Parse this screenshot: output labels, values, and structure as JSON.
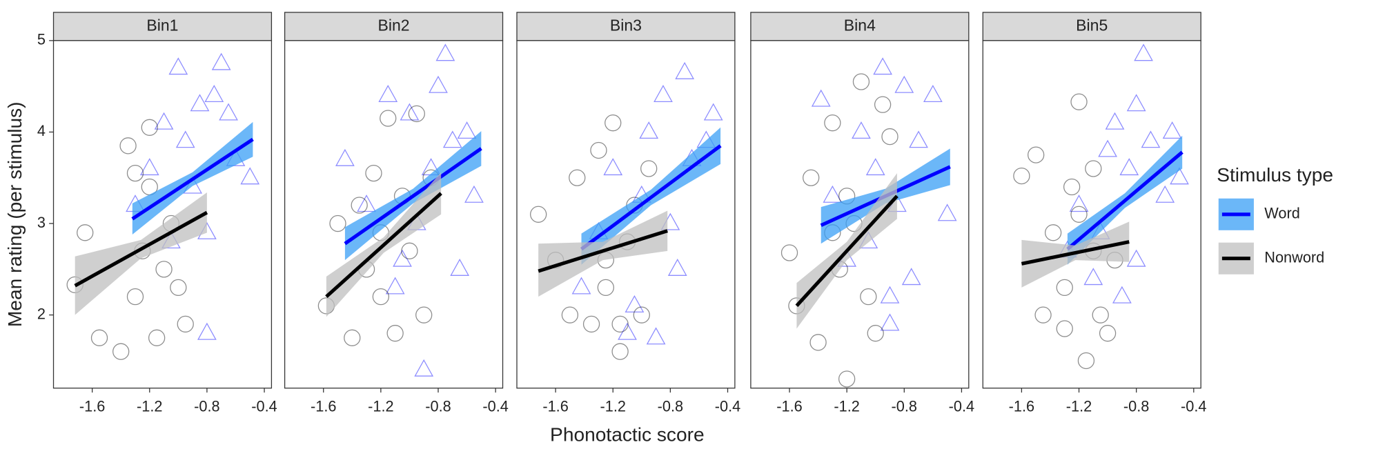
{
  "xlabel": "Phonotactic score",
  "ylabel": "Mean rating (per stimulus)",
  "legend_title": "Stimulus type",
  "chart_data": [
    {
      "type": "scatter",
      "title": "Bin1",
      "xlim": [
        -1.87,
        -0.35
      ],
      "ylim": [
        1.2,
        5.0
      ],
      "xticks": [
        -1.6,
        -1.2,
        -0.8,
        -0.4
      ],
      "yticks": [
        2,
        3,
        4,
        5
      ],
      "series": [
        {
          "name": "Word",
          "color": "#0000ff",
          "band_color": "#3a9ff5",
          "shape": "triangle",
          "x": [
            -1.3,
            -1.2,
            -1.1,
            -1.05,
            -1.0,
            -0.95,
            -0.9,
            -0.85,
            -0.8,
            -0.75,
            -0.7,
            -0.6,
            -0.5,
            -0.8,
            -0.65
          ],
          "values": [
            3.2,
            3.6,
            4.1,
            2.8,
            4.7,
            3.9,
            3.4,
            4.3,
            1.8,
            4.4,
            4.75,
            3.7,
            3.5,
            2.9,
            4.2
          ],
          "fit": {
            "x": [
              -1.32,
              -0.9,
              -0.48
            ],
            "y": [
              3.05,
              3.485,
              3.92
            ],
            "lower": [
              2.88,
              3.41,
              3.73
            ],
            "upper": [
              3.22,
              3.56,
              4.11
            ]
          }
        },
        {
          "name": "Nonword",
          "color": "#000000",
          "band_color": "#bfbfbf",
          "shape": "circle",
          "x": [
            -1.72,
            -1.65,
            -1.55,
            -1.4,
            -1.35,
            -1.3,
            -1.25,
            -1.2,
            -1.15,
            -1.1,
            -1.05,
            -1.0,
            -0.95,
            -1.2,
            -1.3
          ],
          "values": [
            2.33,
            2.9,
            1.75,
            1.6,
            3.85,
            2.2,
            2.7,
            3.4,
            1.75,
            2.5,
            3.0,
            2.3,
            1.9,
            4.05,
            3.55
          ],
          "fit": {
            "x": [
              -1.72,
              -1.26,
              -0.8
            ],
            "y": [
              2.32,
              2.72,
              3.12
            ],
            "lower": [
              2.0,
              2.62,
              2.9
            ],
            "upper": [
              2.64,
              2.82,
              3.34
            ]
          }
        }
      ]
    },
    {
      "type": "scatter",
      "title": "Bin2",
      "xlim": [
        -1.87,
        -0.35
      ],
      "ylim": [
        1.2,
        5.0
      ],
      "xticks": [
        -1.6,
        -1.2,
        -0.8,
        -0.4
      ],
      "series": [
        {
          "name": "Word",
          "color": "#0000ff",
          "band_color": "#3a9ff5",
          "shape": "triangle",
          "x": [
            -1.45,
            -1.3,
            -1.15,
            -1.05,
            -1.0,
            -0.9,
            -0.85,
            -0.8,
            -0.75,
            -0.7,
            -0.65,
            -0.6,
            -0.55,
            -0.95,
            -1.1
          ],
          "values": [
            3.7,
            3.2,
            4.4,
            2.6,
            4.2,
            1.4,
            3.6,
            4.5,
            4.85,
            3.9,
            2.5,
            4.0,
            3.3,
            3.0,
            2.3
          ],
          "fit": {
            "x": [
              -1.45,
              -0.975,
              -0.5
            ],
            "y": [
              2.78,
              3.3,
              3.82
            ],
            "lower": [
              2.6,
              3.22,
              3.63
            ],
            "upper": [
              2.96,
              3.38,
              4.01
            ]
          }
        },
        {
          "name": "Nonword",
          "color": "#000000",
          "band_color": "#bfbfbf",
          "shape": "circle",
          "x": [
            -1.58,
            -1.5,
            -1.4,
            -1.3,
            -1.25,
            -1.2,
            -1.15,
            -1.1,
            -1.05,
            -1.0,
            -0.95,
            -0.9,
            -1.2,
            -1.35,
            -0.85
          ],
          "values": [
            2.1,
            3.0,
            1.75,
            2.5,
            3.55,
            2.2,
            4.15,
            1.8,
            3.3,
            2.7,
            4.2,
            2.0,
            2.9,
            3.2,
            3.5
          ],
          "fit": {
            "x": [
              -1.58,
              -1.18,
              -0.78
            ],
            "y": [
              2.2,
              2.765,
              3.33
            ],
            "lower": [
              1.98,
              2.68,
              3.1
            ],
            "upper": [
              2.42,
              2.85,
              3.56
            ]
          }
        }
      ]
    },
    {
      "type": "scatter",
      "title": "Bin3",
      "xlim": [
        -1.87,
        -0.35
      ],
      "ylim": [
        1.2,
        5.0
      ],
      "xticks": [
        -1.6,
        -1.2,
        -0.8,
        -0.4
      ],
      "series": [
        {
          "name": "Word",
          "color": "#0000ff",
          "band_color": "#3a9ff5",
          "shape": "triangle",
          "x": [
            -1.42,
            -1.3,
            -1.2,
            -1.1,
            -1.0,
            -0.95,
            -0.9,
            -0.85,
            -0.8,
            -0.7,
            -0.65,
            -0.55,
            -0.5,
            -1.05,
            -0.75
          ],
          "values": [
            2.3,
            2.9,
            3.6,
            1.8,
            3.3,
            4.0,
            1.75,
            4.4,
            3.0,
            4.65,
            3.7,
            3.9,
            4.2,
            2.1,
            2.5
          ],
          "fit": {
            "x": [
              -1.42,
              -0.935,
              -0.45
            ],
            "y": [
              2.72,
              3.285,
              3.85
            ],
            "lower": [
              2.55,
              3.2,
              3.65
            ],
            "upper": [
              2.89,
              3.37,
              4.05
            ]
          }
        },
        {
          "name": "Nonword",
          "color": "#000000",
          "band_color": "#bfbfbf",
          "shape": "circle",
          "x": [
            -1.72,
            -1.6,
            -1.5,
            -1.45,
            -1.35,
            -1.3,
            -1.25,
            -1.2,
            -1.15,
            -1.1,
            -1.05,
            -1.0,
            -1.25,
            -1.15,
            -0.95
          ],
          "values": [
            3.1,
            2.6,
            2.0,
            3.5,
            1.9,
            3.8,
            2.3,
            4.1,
            1.6,
            2.8,
            3.2,
            2.0,
            2.6,
            1.9,
            3.6
          ],
          "fit": {
            "x": [
              -1.72,
              -1.27,
              -0.82
            ],
            "y": [
              2.48,
              2.7,
              2.92
            ],
            "lower": [
              2.2,
              2.6,
              2.7
            ],
            "upper": [
              2.78,
              2.8,
              3.14
            ]
          }
        }
      ]
    },
    {
      "type": "scatter",
      "title": "Bin4",
      "xlim": [
        -1.87,
        -0.35
      ],
      "ylim": [
        1.2,
        5.0
      ],
      "xticks": [
        -1.6,
        -1.2,
        -0.8,
        -0.4
      ],
      "series": [
        {
          "name": "Word",
          "color": "#0000ff",
          "band_color": "#3a9ff5",
          "shape": "triangle",
          "x": [
            -1.38,
            -1.3,
            -1.2,
            -1.1,
            -1.0,
            -0.95,
            -0.9,
            -0.85,
            -0.8,
            -0.75,
            -0.7,
            -0.6,
            -0.5,
            -0.9,
            -1.05
          ],
          "values": [
            4.35,
            3.3,
            2.6,
            4.0,
            3.6,
            4.7,
            1.9,
            3.2,
            4.5,
            2.4,
            3.9,
            4.4,
            3.1,
            2.2,
            2.8
          ],
          "fit": {
            "x": [
              -1.38,
              -0.93,
              -0.48
            ],
            "y": [
              2.98,
              3.3,
              3.62
            ],
            "lower": [
              2.78,
              3.22,
              3.42
            ],
            "upper": [
              3.18,
              3.38,
              3.82
            ]
          }
        },
        {
          "name": "Nonword",
          "color": "#000000",
          "band_color": "#bfbfbf",
          "shape": "circle",
          "x": [
            -1.6,
            -1.55,
            -1.45,
            -1.4,
            -1.3,
            -1.25,
            -1.2,
            -1.15,
            -1.1,
            -1.05,
            -1.0,
            -0.95,
            -1.2,
            -1.3,
            -0.9
          ],
          "values": [
            2.68,
            2.1,
            3.5,
            1.7,
            4.1,
            2.5,
            1.3,
            3.0,
            4.55,
            2.2,
            1.8,
            4.3,
            3.3,
            2.9,
            3.95
          ],
          "fit": {
            "x": [
              -1.55,
              -1.2,
              -0.85
            ],
            "y": [
              2.1,
              2.7,
              3.3
            ],
            "lower": [
              1.85,
              2.6,
              3.05
            ],
            "upper": [
              2.35,
              2.8,
              3.55
            ]
          }
        }
      ]
    },
    {
      "type": "scatter",
      "title": "Bin5",
      "xlim": [
        -1.87,
        -0.35
      ],
      "ylim": [
        1.2,
        5.0
      ],
      "xticks": [
        -1.6,
        -1.2,
        -0.8,
        -0.4
      ],
      "series": [
        {
          "name": "Word",
          "color": "#0000ff",
          "band_color": "#3a9ff5",
          "shape": "triangle",
          "x": [
            -1.28,
            -1.2,
            -1.1,
            -1.0,
            -0.95,
            -0.9,
            -0.85,
            -0.8,
            -0.75,
            -0.7,
            -0.6,
            -0.55,
            -0.5,
            -1.05,
            -0.8
          ],
          "values": [
            2.7,
            3.2,
            2.4,
            3.8,
            4.1,
            2.2,
            3.6,
            4.3,
            4.85,
            3.9,
            3.3,
            4.0,
            3.5,
            2.9,
            2.6
          ],
          "fit": {
            "x": [
              -1.28,
              -0.88,
              -0.48
            ],
            "y": [
              2.72,
              3.25,
              3.78
            ],
            "lower": [
              2.55,
              3.17,
              3.6
            ],
            "upper": [
              2.89,
              3.33,
              3.96
            ]
          }
        },
        {
          "name": "Nonword",
          "color": "#000000",
          "band_color": "#bfbfbf",
          "shape": "circle",
          "x": [
            -1.6,
            -1.5,
            -1.45,
            -1.38,
            -1.3,
            -1.25,
            -1.2,
            -1.15,
            -1.1,
            -1.05,
            -1.0,
            -1.2,
            -1.3,
            -1.1,
            -0.95
          ],
          "values": [
            3.52,
            3.75,
            2.0,
            2.9,
            2.3,
            3.4,
            4.33,
            1.5,
            2.7,
            2.0,
            1.8,
            3.1,
            1.85,
            3.6,
            2.6
          ],
          "fit": {
            "x": [
              -1.6,
              -1.225,
              -0.85
            ],
            "y": [
              2.56,
              2.68,
              2.8
            ],
            "lower": [
              2.3,
              2.6,
              2.58
            ],
            "upper": [
              2.82,
              2.76,
              3.02
            ]
          }
        }
      ]
    }
  ]
}
